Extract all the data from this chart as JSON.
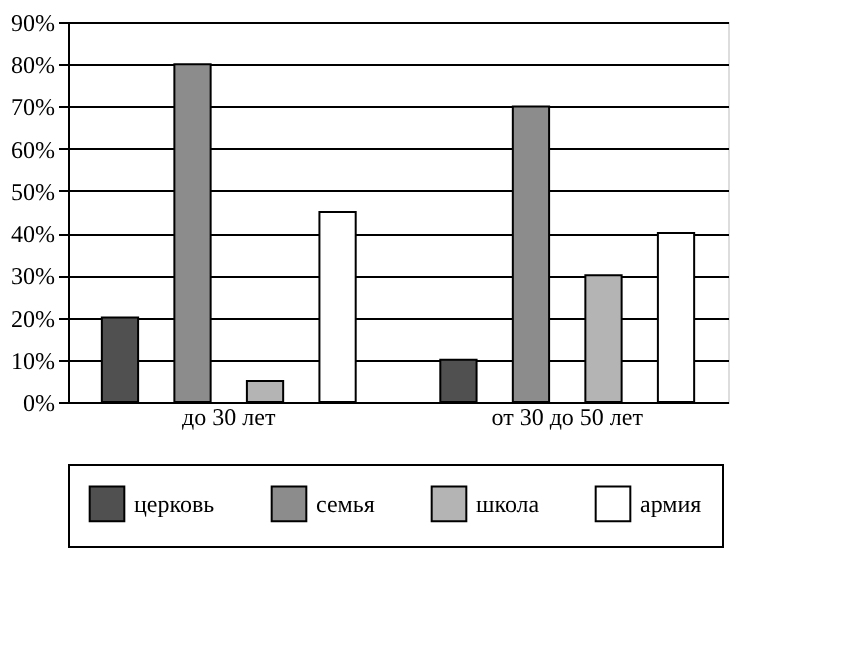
{
  "chart_data": {
    "type": "bar",
    "categories": [
      "до 30 лет",
      "от 30 до 50 лет"
    ],
    "series": [
      {
        "name": "церковь",
        "color": "#505050",
        "values": [
          20,
          10
        ]
      },
      {
        "name": "семья",
        "color": "#8c8c8c",
        "values": [
          80,
          70
        ]
      },
      {
        "name": "школа",
        "color": "#b4b4b4",
        "values": [
          5,
          30
        ]
      },
      {
        "name": "армия",
        "color": "#ffffff",
        "values": [
          45,
          40
        ]
      }
    ],
    "ylim": [
      0,
      90
    ],
    "yticks": [
      {
        "value": 0,
        "label": "0%"
      },
      {
        "value": 10,
        "label": "10%"
      },
      {
        "value": 20,
        "label": "20%"
      },
      {
        "value": 30,
        "label": "30%"
      },
      {
        "value": 40,
        "label": "40%"
      },
      {
        "value": 50,
        "label": "50%"
      },
      {
        "value": 60,
        "label": "60%"
      },
      {
        "value": 70,
        "label": "70%"
      },
      {
        "value": 80,
        "label": "80%"
      },
      {
        "value": 90,
        "label": "90%"
      }
    ],
    "grid": "y",
    "legend": "bottom"
  }
}
